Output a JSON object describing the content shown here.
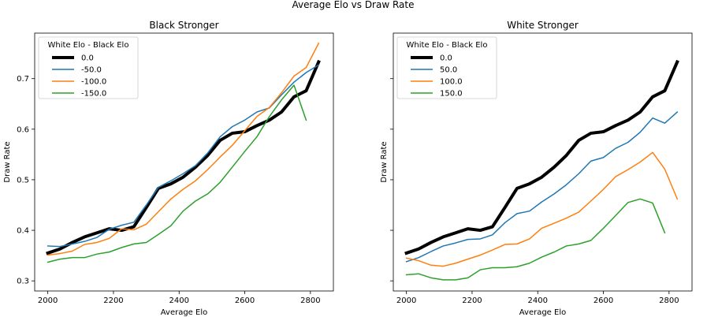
{
  "figure": {
    "title": "Average Elo vs Draw Rate"
  },
  "chart_data": [
    {
      "type": "line",
      "title": "Black Stronger",
      "xlabel": "Average Elo",
      "ylabel": "Draw Rate",
      "xlim": [
        1960,
        2870
      ],
      "ylim": [
        0.28,
        0.79
      ],
      "xticks": [
        2000,
        2200,
        2400,
        2600,
        2800
      ],
      "yticks": [
        0.3,
        0.4,
        0.5,
        0.6,
        0.7
      ],
      "grid": false,
      "legend": {
        "title": "White Elo - Black Elo",
        "placement": "top-left"
      },
      "series": [
        {
          "name": "0.0",
          "color": "#000000",
          "width": 4,
          "x": [
            2000,
            2037,
            2075,
            2112,
            2150,
            2187,
            2225,
            2262,
            2300,
            2337,
            2375,
            2412,
            2450,
            2487,
            2525,
            2562,
            2600,
            2637,
            2675,
            2712,
            2750,
            2787,
            2825
          ],
          "y": [
            0.355,
            0.363,
            0.376,
            0.387,
            0.395,
            0.403,
            0.4,
            0.407,
            0.445,
            0.483,
            0.492,
            0.505,
            0.525,
            0.548,
            0.578,
            0.592,
            0.595,
            0.607,
            0.618,
            0.634,
            0.664,
            0.676,
            0.733
          ]
        },
        {
          "name": "-50.0",
          "color": "#1f77b4",
          "width": 1.5,
          "x": [
            2000,
            2037,
            2075,
            2112,
            2150,
            2187,
            2225,
            2262,
            2300,
            2337,
            2375,
            2412,
            2450,
            2487,
            2525,
            2562,
            2600,
            2637,
            2675,
            2712,
            2750,
            2787,
            2825
          ],
          "y": [
            0.369,
            0.368,
            0.373,
            0.378,
            0.386,
            0.402,
            0.41,
            0.416,
            0.45,
            0.485,
            0.498,
            0.512,
            0.528,
            0.553,
            0.585,
            0.605,
            0.618,
            0.634,
            0.642,
            0.668,
            0.693,
            0.712,
            0.727
          ]
        },
        {
          "name": "-100.0",
          "color": "#ff7f0e",
          "width": 1.5,
          "x": [
            2000,
            2037,
            2075,
            2112,
            2150,
            2187,
            2225,
            2262,
            2300,
            2337,
            2375,
            2412,
            2450,
            2487,
            2525,
            2562,
            2600,
            2637,
            2675,
            2712,
            2750,
            2787,
            2825
          ],
          "y": [
            0.351,
            0.354,
            0.359,
            0.372,
            0.376,
            0.384,
            0.403,
            0.401,
            0.412,
            0.437,
            0.462,
            0.481,
            0.498,
            0.52,
            0.545,
            0.568,
            0.597,
            0.625,
            0.643,
            0.672,
            0.705,
            0.722,
            0.77
          ]
        },
        {
          "name": "-150.0",
          "color": "#2ca02c",
          "width": 1.5,
          "x": [
            2000,
            2037,
            2075,
            2112,
            2150,
            2187,
            2225,
            2262,
            2300,
            2337,
            2375,
            2412,
            2450,
            2487,
            2525,
            2562,
            2600,
            2637,
            2675,
            2712,
            2750,
            2787
          ],
          "y": [
            0.337,
            0.343,
            0.346,
            0.346,
            0.353,
            0.357,
            0.366,
            0.373,
            0.376,
            0.392,
            0.409,
            0.438,
            0.458,
            0.472,
            0.495,
            0.525,
            0.556,
            0.585,
            0.625,
            0.658,
            0.687,
            0.618
          ]
        }
      ]
    },
    {
      "type": "line",
      "title": "White Stronger",
      "xlabel": "Average Elo",
      "ylabel": "Draw Rate",
      "xlim": [
        1960,
        2870
      ],
      "ylim": [
        0.28,
        0.79
      ],
      "xticks": [
        2000,
        2200,
        2400,
        2600,
        2800
      ],
      "yticks": [
        0.3,
        0.4,
        0.5,
        0.6,
        0.7
      ],
      "grid": false,
      "legend": {
        "title": "White Elo - Black Elo",
        "placement": "top-left"
      },
      "series": [
        {
          "name": "0.0",
          "color": "#000000",
          "width": 4,
          "x": [
            2000,
            2037,
            2075,
            2112,
            2150,
            2187,
            2225,
            2262,
            2300,
            2337,
            2375,
            2412,
            2450,
            2487,
            2525,
            2562,
            2600,
            2637,
            2675,
            2712,
            2750,
            2787,
            2825
          ],
          "y": [
            0.355,
            0.363,
            0.376,
            0.387,
            0.395,
            0.403,
            0.4,
            0.407,
            0.445,
            0.483,
            0.492,
            0.505,
            0.525,
            0.548,
            0.578,
            0.592,
            0.595,
            0.607,
            0.618,
            0.634,
            0.664,
            0.676,
            0.733
          ]
        },
        {
          "name": "50.0",
          "color": "#1f77b4",
          "width": 1.5,
          "x": [
            2000,
            2037,
            2075,
            2112,
            2150,
            2187,
            2225,
            2262,
            2300,
            2337,
            2375,
            2412,
            2450,
            2487,
            2525,
            2562,
            2600,
            2637,
            2675,
            2712,
            2750,
            2787,
            2825
          ],
          "y": [
            0.338,
            0.346,
            0.358,
            0.369,
            0.375,
            0.382,
            0.383,
            0.391,
            0.415,
            0.433,
            0.438,
            0.456,
            0.472,
            0.49,
            0.512,
            0.537,
            0.544,
            0.562,
            0.574,
            0.594,
            0.622,
            0.612,
            0.634
          ]
        },
        {
          "name": "100.0",
          "color": "#ff7f0e",
          "width": 1.5,
          "x": [
            2000,
            2037,
            2075,
            2112,
            2150,
            2187,
            2225,
            2262,
            2300,
            2337,
            2375,
            2412,
            2450,
            2487,
            2525,
            2562,
            2600,
            2637,
            2675,
            2712,
            2750,
            2787,
            2825
          ],
          "y": [
            0.345,
            0.34,
            0.331,
            0.329,
            0.335,
            0.343,
            0.351,
            0.361,
            0.372,
            0.373,
            0.383,
            0.404,
            0.414,
            0.424,
            0.436,
            0.458,
            0.481,
            0.506,
            0.52,
            0.535,
            0.554,
            0.521,
            0.462
          ]
        },
        {
          "name": "150.0",
          "color": "#2ca02c",
          "width": 1.5,
          "x": [
            2000,
            2037,
            2075,
            2112,
            2150,
            2187,
            2225,
            2262,
            2300,
            2337,
            2375,
            2412,
            2450,
            2487,
            2525,
            2562,
            2600,
            2637,
            2675,
            2712,
            2750,
            2787
          ],
          "y": [
            0.312,
            0.314,
            0.306,
            0.302,
            0.302,
            0.306,
            0.322,
            0.326,
            0.326,
            0.328,
            0.335,
            0.347,
            0.357,
            0.369,
            0.373,
            0.38,
            0.404,
            0.429,
            0.455,
            0.462,
            0.454,
            0.395
          ]
        }
      ]
    }
  ]
}
